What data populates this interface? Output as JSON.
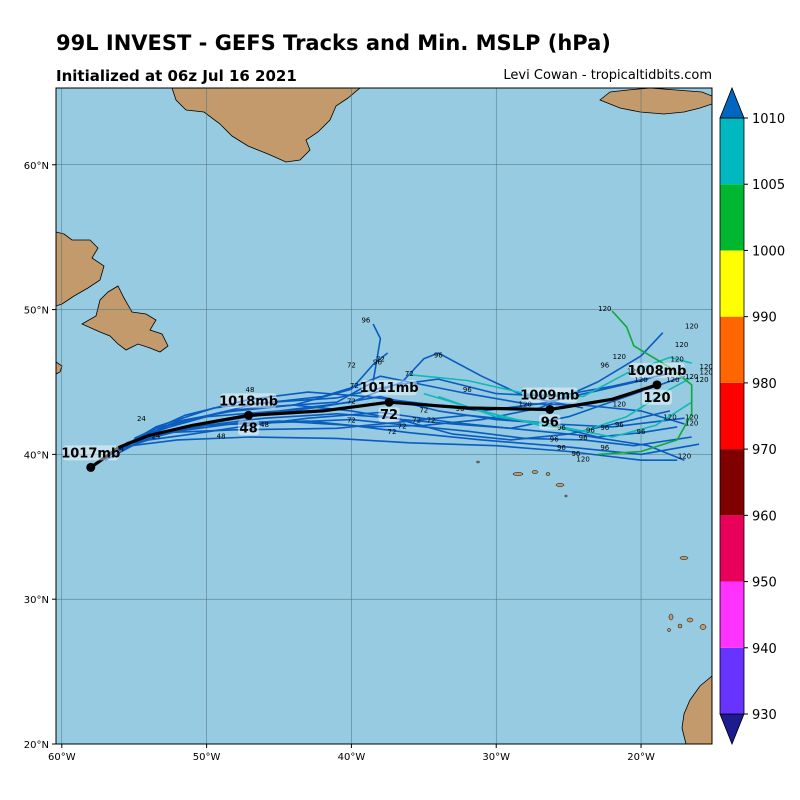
{
  "title": "99L INVEST - GEFS Tracks and Min. MSLP (hPa)",
  "subtitle_left": "Initialized at 06z Jul 16 2021",
  "subtitle_right": "Levi Cowan - tropicaltidbits.com",
  "colors": {
    "ocean": "#96cbe1",
    "land": "#c29a6b",
    "member_track": "#0a5cc0",
    "member_track_teal": "#10b8b8",
    "member_track_green": "#10a83c",
    "mean_track": "#000000"
  },
  "axes": {
    "lon_ticks": [
      "60°W",
      "50°W",
      "40°W",
      "30°W",
      "20°W"
    ],
    "lat_ticks": [
      "60°N",
      "50°N",
      "40°N",
      "30°N",
      "20°N"
    ]
  },
  "colorbar": {
    "ticks": [
      "930",
      "940",
      "950",
      "960",
      "970",
      "980",
      "990",
      "1000",
      "1005",
      "1010"
    ],
    "colors": [
      "#1c1c90",
      "#6633ff",
      "#ff33ff",
      "#e8005a",
      "#800000",
      "#ff0000",
      "#ff6600",
      "#ffff00",
      "#00b830",
      "#00b8c0",
      "#0066c0"
    ]
  },
  "mean_track": {
    "points": [
      {
        "lon": -58.0,
        "lat": 39.1,
        "pressure": "1017mb",
        "hour": ""
      },
      {
        "lon": -47.1,
        "lat": 42.7,
        "pressure": "1018mb",
        "hour": "48"
      },
      {
        "lon": -37.4,
        "lat": 43.6,
        "pressure": "1011mb",
        "hour": "72"
      },
      {
        "lon": -26.3,
        "lat": 43.1,
        "pressure": "1009mb",
        "hour": "96"
      },
      {
        "lon": -18.9,
        "lat": 44.8,
        "pressure": "1008mb",
        "hour": "120"
      }
    ],
    "path": [
      [
        -58.0,
        39.1
      ],
      [
        -56.0,
        40.5
      ],
      [
        -54.0,
        41.3
      ],
      [
        -51.0,
        42.0
      ],
      [
        -47.1,
        42.7
      ],
      [
        -42.0,
        43.0
      ],
      [
        -37.4,
        43.6
      ],
      [
        -32.0,
        43.2
      ],
      [
        -26.3,
        43.1
      ],
      [
        -22.0,
        43.8
      ],
      [
        -18.9,
        44.8
      ]
    ]
  },
  "member_tracks": [
    [
      [
        -58.0,
        39.1
      ],
      [
        -55.5,
        40.8
      ],
      [
        -52.0,
        41.8
      ],
      [
        -47.0,
        42.6
      ],
      [
        -42.0,
        43.3
      ],
      [
        -38.0,
        44.0
      ],
      [
        -34.0,
        43.0
      ],
      [
        -30.0,
        42.4
      ],
      [
        -26.0,
        42.1
      ],
      [
        -22.0,
        41.9
      ],
      [
        -17.0,
        42.5
      ]
    ],
    [
      [
        -57.5,
        39.4
      ],
      [
        -55.0,
        41.0
      ],
      [
        -52.0,
        42.3
      ],
      [
        -47.0,
        43.2
      ],
      [
        -41.0,
        43.6
      ],
      [
        -38.5,
        45.0
      ],
      [
        -38.0,
        48.0
      ],
      [
        -38.5,
        49.0
      ]
    ],
    [
      [
        -57.0,
        39.6
      ],
      [
        -54.0,
        41.2
      ],
      [
        -50.0,
        42.0
      ],
      [
        -45.0,
        42.3
      ],
      [
        -40.0,
        42.0
      ],
      [
        -36.0,
        41.5
      ],
      [
        -31.0,
        41.0
      ],
      [
        -25.0,
        40.5
      ],
      [
        -20.0,
        40.0
      ],
      [
        -16.0,
        40.7
      ]
    ],
    [
      [
        -57.0,
        39.8
      ],
      [
        -54.0,
        41.5
      ],
      [
        -50.0,
        42.6
      ],
      [
        -45.0,
        43.0
      ],
      [
        -40.0,
        43.6
      ],
      [
        -36.5,
        45.0
      ],
      [
        -35.0,
        46.6
      ],
      [
        -34.0,
        47.0
      ],
      [
        -31.0,
        45.4
      ],
      [
        -28.0,
        44.0
      ],
      [
        -24.0,
        43.2
      ]
    ],
    [
      [
        -56.8,
        40.0
      ],
      [
        -53.5,
        41.8
      ],
      [
        -49.0,
        42.9
      ],
      [
        -44.0,
        43.4
      ],
      [
        -40.0,
        44.5
      ],
      [
        -38.5,
        46.2
      ],
      [
        -37.5,
        47.0
      ]
    ],
    [
      [
        -56.5,
        40.1
      ],
      [
        -53.0,
        41.5
      ],
      [
        -48.0,
        41.7
      ],
      [
        -41.0,
        41.8
      ],
      [
        -36.0,
        42.3
      ],
      [
        -32.0,
        42.7
      ],
      [
        -27.0,
        42.2
      ],
      [
        -23.0,
        41.2
      ],
      [
        -20.0,
        41.5
      ],
      [
        -17.5,
        41.9
      ]
    ],
    [
      [
        -56.5,
        40.2
      ],
      [
        -54.0,
        41.0
      ],
      [
        -51.0,
        41.4
      ],
      [
        -47.0,
        42.0
      ],
      [
        -43.0,
        42.5
      ],
      [
        -38.0,
        42.9
      ],
      [
        -33.0,
        42.2
      ],
      [
        -28.0,
        41.7
      ],
      [
        -24.0,
        41.3
      ],
      [
        -19.5,
        40.6
      ],
      [
        -17.0,
        39.6
      ]
    ],
    [
      [
        -56.0,
        40.4
      ],
      [
        -53.5,
        41.9
      ],
      [
        -49.5,
        43.2
      ],
      [
        -45.5,
        43.6
      ],
      [
        -41.0,
        43.9
      ],
      [
        -37.0,
        44.8
      ],
      [
        -34.0,
        45.2
      ],
      [
        -30.0,
        44.2
      ],
      [
        -26.0,
        44.0
      ],
      [
        -22.0,
        44.7
      ],
      [
        -18.0,
        45.6
      ]
    ],
    [
      [
        -56.0,
        40.5
      ],
      [
        -52.0,
        41.0
      ],
      [
        -47.0,
        41.2
      ],
      [
        -41.0,
        41.1
      ],
      [
        -36.0,
        40.8
      ],
      [
        -30.0,
        40.6
      ],
      [
        -25.0,
        40.2
      ],
      [
        -20.0,
        39.6
      ],
      [
        -17.5,
        39.6
      ]
    ],
    [
      [
        -55.8,
        40.5
      ],
      [
        -52.5,
        42.1
      ],
      [
        -48.5,
        43.0
      ],
      [
        -44.0,
        43.4
      ],
      [
        -40.0,
        43.0
      ],
      [
        -36.5,
        42.4
      ],
      [
        -33.0,
        42.1
      ],
      [
        -29.0,
        41.8
      ],
      [
        -25.0,
        42.6
      ],
      [
        -21.0,
        44.0
      ],
      [
        -17.0,
        45.4
      ]
    ],
    [
      [
        -55.5,
        40.7
      ],
      [
        -52.0,
        41.6
      ],
      [
        -47.5,
        42.2
      ],
      [
        -43.0,
        42.3
      ],
      [
        -39.0,
        41.9
      ],
      [
        -35.0,
        42.0
      ],
      [
        -31.0,
        42.4
      ],
      [
        -27.0,
        43.2
      ],
      [
        -23.0,
        45.0
      ],
      [
        -20.0,
        46.8
      ],
      [
        -18.5,
        48.4
      ]
    ],
    [
      [
        -55.5,
        40.8
      ],
      [
        -51.5,
        42.3
      ],
      [
        -46.5,
        43.5
      ],
      [
        -42.0,
        44.0
      ],
      [
        -40.0,
        44.6
      ],
      [
        -38.0,
        45.4
      ],
      [
        -36.0,
        45.0
      ],
      [
        -32.0,
        44.2
      ],
      [
        -28.0,
        43.5
      ],
      [
        -24.0,
        43.4
      ],
      [
        -20.0,
        43.0
      ],
      [
        -17.0,
        42.1
      ]
    ],
    [
      [
        -55.0,
        41.0
      ],
      [
        -51.0,
        41.9
      ],
      [
        -46.0,
        42.5
      ],
      [
        -41.0,
        42.8
      ],
      [
        -37.0,
        42.5
      ],
      [
        -33.0,
        41.4
      ],
      [
        -29.0,
        41.0
      ],
      [
        -25.0,
        41.4
      ],
      [
        -21.0,
        42.3
      ],
      [
        -18.0,
        43.0
      ]
    ],
    [
      [
        -55.0,
        41.1
      ],
      [
        -51.5,
        42.7
      ],
      [
        -47.0,
        43.8
      ],
      [
        -43.0,
        44.3
      ],
      [
        -39.0,
        44.0
      ],
      [
        -35.0,
        43.5
      ],
      [
        -31.0,
        43.0
      ],
      [
        -27.0,
        43.5
      ],
      [
        -23.0,
        44.4
      ],
      [
        -19.5,
        45.2
      ]
    ],
    [
      [
        -54.8,
        41.2
      ],
      [
        -50.5,
        42.0
      ],
      [
        -45.0,
        42.2
      ],
      [
        -40.0,
        42.4
      ],
      [
        -36.0,
        42.0
      ],
      [
        -32.0,
        41.6
      ],
      [
        -28.0,
        41.1
      ],
      [
        -24.0,
        41.0
      ],
      [
        -20.5,
        40.6
      ],
      [
        -16.5,
        41.2
      ]
    ]
  ],
  "teal_tracks": [
    [
      [
        -35.0,
        44.2
      ],
      [
        -31.0,
        43.0
      ],
      [
        -27.0,
        42.0
      ],
      [
        -24.0,
        41.6
      ],
      [
        -21.0,
        42.6
      ],
      [
        -18.0,
        44.5
      ],
      [
        -16.5,
        45.3
      ]
    ],
    [
      [
        -36.0,
        45.5
      ],
      [
        -32.0,
        45.1
      ],
      [
        -28.0,
        44.2
      ],
      [
        -24.0,
        44.0
      ],
      [
        -21.0,
        45.6
      ],
      [
        -18.0,
        46.7
      ],
      [
        -16.5,
        46.3
      ]
    ],
    [
      [
        -34.0,
        44.0
      ],
      [
        -30.0,
        42.6
      ],
      [
        -26.0,
        42.0
      ],
      [
        -22.0,
        41.2
      ],
      [
        -19.0,
        42.0
      ],
      [
        -16.5,
        43.6
      ]
    ]
  ],
  "green_track": [
    [
      -23.0,
      40.0
    ],
    [
      -20.0,
      40.2
    ],
    [
      -17.5,
      41.0
    ],
    [
      -16.5,
      42.8
    ],
    [
      -16.5,
      44.8
    ],
    [
      -18.0,
      46.0
    ],
    [
      -20.5,
      47.5
    ],
    [
      -21.0,
      48.8
    ],
    [
      -22.0,
      49.9
    ]
  ],
  "hour_labels": [
    {
      "lon": -39.0,
      "lat": 49.1,
      "text": "96"
    },
    {
      "lon": -38.0,
      "lat": 46.4,
      "text": "72"
    },
    {
      "lon": -38.2,
      "lat": 46.2,
      "text": "96"
    },
    {
      "lon": -40.0,
      "lat": 46.0,
      "text": "72"
    },
    {
      "lon": -39.8,
      "lat": 44.6,
      "text": "72"
    },
    {
      "lon": -36.0,
      "lat": 45.4,
      "text": "72"
    },
    {
      "lon": -34.0,
      "lat": 46.7,
      "text": "96"
    },
    {
      "lon": -32.0,
      "lat": 44.3,
      "text": "96"
    },
    {
      "lon": -32.5,
      "lat": 43.0,
      "text": "96"
    },
    {
      "lon": -35.0,
      "lat": 42.9,
      "text": "72"
    },
    {
      "lon": -34.5,
      "lat": 42.2,
      "text": "72"
    },
    {
      "lon": -35.5,
      "lat": 42.2,
      "text": "72"
    },
    {
      "lon": -36.5,
      "lat": 41.8,
      "text": "72"
    },
    {
      "lon": -37.2,
      "lat": 41.4,
      "text": "72"
    },
    {
      "lon": -40.0,
      "lat": 42.2,
      "text": "72"
    },
    {
      "lon": -40.0,
      "lat": 43.5,
      "text": "72"
    },
    {
      "lon": -47.0,
      "lat": 44.3,
      "text": "48"
    },
    {
      "lon": -46.0,
      "lat": 41.9,
      "text": "48"
    },
    {
      "lon": -49.0,
      "lat": 41.1,
      "text": "48"
    },
    {
      "lon": -56.0,
      "lat": 40.2,
      "text": "24"
    },
    {
      "lon": -54.5,
      "lat": 42.3,
      "text": "24"
    },
    {
      "lon": -53.5,
      "lat": 41.1,
      "text": "24"
    },
    {
      "lon": -28.0,
      "lat": 43.3,
      "text": "120"
    },
    {
      "lon": -25.5,
      "lat": 41.7,
      "text": "96"
    },
    {
      "lon": -26.0,
      "lat": 40.9,
      "text": "96"
    },
    {
      "lon": -24.0,
      "lat": 41.0,
      "text": "96"
    },
    {
      "lon": -23.5,
      "lat": 41.5,
      "text": "96"
    },
    {
      "lon": -22.5,
      "lat": 40.3,
      "text": "96"
    },
    {
      "lon": -24.5,
      "lat": 39.9,
      "text": "96"
    },
    {
      "lon": -25.5,
      "lat": 40.3,
      "text": "96"
    },
    {
      "lon": -22.5,
      "lat": 41.7,
      "text": "96"
    },
    {
      "lon": -21.5,
      "lat": 41.9,
      "text": "96"
    },
    {
      "lon": -20.0,
      "lat": 41.4,
      "text": "96"
    },
    {
      "lon": -22.5,
      "lat": 46.0,
      "text": "96"
    },
    {
      "lon": -21.5,
      "lat": 46.6,
      "text": "120"
    },
    {
      "lon": -20.5,
      "lat": 45.6,
      "text": "120"
    },
    {
      "lon": -20.0,
      "lat": 45.0,
      "text": "120"
    },
    {
      "lon": -22.5,
      "lat": 49.9,
      "text": "120"
    },
    {
      "lon": -16.5,
      "lat": 48.7,
      "text": "120"
    },
    {
      "lon": -17.2,
      "lat": 47.4,
      "text": "120"
    },
    {
      "lon": -17.5,
      "lat": 46.4,
      "text": "120"
    },
    {
      "lon": -17.8,
      "lat": 45.0,
      "text": "120"
    },
    {
      "lon": -16.5,
      "lat": 45.2,
      "text": "120"
    },
    {
      "lon": -15.5,
      "lat": 45.9,
      "text": "120"
    },
    {
      "lon": -15.5,
      "lat": 45.5,
      "text": "120"
    },
    {
      "lon": -15.8,
      "lat": 45.0,
      "text": "120"
    },
    {
      "lon": -21.5,
      "lat": 43.3,
      "text": "120"
    },
    {
      "lon": -18.0,
      "lat": 42.4,
      "text": "120"
    },
    {
      "lon": -16.5,
      "lat": 42.4,
      "text": "120"
    },
    {
      "lon": -16.5,
      "lat": 42.0,
      "text": "120"
    },
    {
      "lon": -14.5,
      "lat": 42.8,
      "text": "120"
    },
    {
      "lon": -17.0,
      "lat": 39.7,
      "text": "120"
    },
    {
      "lon": -24.0,
      "lat": 39.5,
      "text": "120"
    }
  ]
}
